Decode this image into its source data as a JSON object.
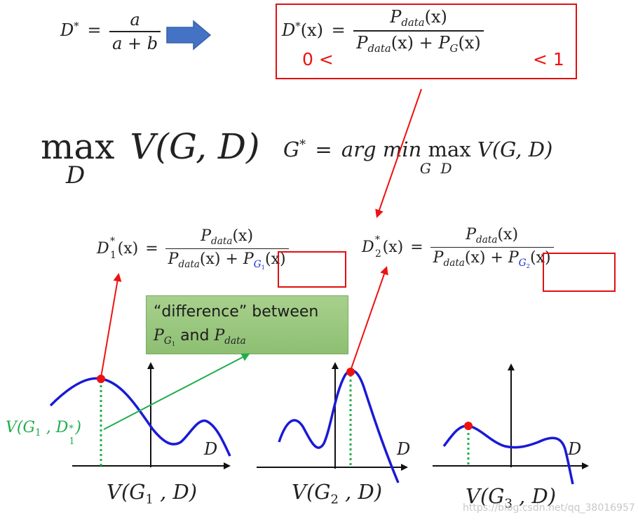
{
  "top_formula": {
    "lhs": "D",
    "star": "*",
    "equals": "=",
    "numerator": "a",
    "denominator": "a + b"
  },
  "boxed_formula": {
    "lhs": "D",
    "star": "*",
    "arg": "(x)",
    "equals": "=",
    "numerator": "P",
    "numerator_sub": "data",
    "numerator_arg": "(x)",
    "den_term1": "P",
    "den_term1_sub": "data",
    "den_term1_arg": "(x) + ",
    "den_term2": "P",
    "den_term2_sub": "G",
    "den_term2_arg": "(x)",
    "lower_bound": "0 <",
    "upper_bound": "< 1"
  },
  "max_formula": {
    "op": "max",
    "under": "D",
    "expr": "V(G, D)"
  },
  "gstar_formula": {
    "lhs": "G",
    "star": "*",
    "equals": "=",
    "argmin": "arg min",
    "min_under": "G",
    "max": "max",
    "max_under": "D",
    "expr": "V(G, D)"
  },
  "d1_formula": {
    "lhs": "D",
    "lhs_sup": "*",
    "lhs_sub": "1",
    "arg": "(x)",
    "equals": "=",
    "numerator": "P",
    "numerator_sub": "data",
    "numerator_arg": "(x)",
    "den_term1": "P",
    "den_term1_sub": "data",
    "den_term1_arg": "(x) + ",
    "boxed_P": "P",
    "boxed_sub": "G",
    "boxed_subsub": "1",
    "boxed_arg": "(x)"
  },
  "d2_formula": {
    "lhs": "D",
    "lhs_sup": "*",
    "lhs_sub": "2",
    "arg": "(x)",
    "equals": "=",
    "numerator": "P",
    "numerator_sub": "data",
    "numerator_arg": "(x)",
    "den_term1": "P",
    "den_term1_sub": "data",
    "den_term1_arg": "(x) + ",
    "boxed_P": "P",
    "boxed_sub": "G",
    "boxed_subsub": "2",
    "boxed_arg": "(x)"
  },
  "callout": {
    "line1": "“difference” between",
    "p1": "P",
    "p1_sub": "G",
    "p1_subsub": "1",
    "and": " and ",
    "p2": "P",
    "p2_sub": "data"
  },
  "green_label": {
    "text": "V(G",
    "sub1": "1",
    "mid": " , D",
    "sup": "*",
    "sub2": "1",
    "close": ")"
  },
  "plots": [
    {
      "axis_label": "D",
      "caption_pre": "V(G",
      "caption_sub": "1",
      "caption_post": " , D)"
    },
    {
      "axis_label": "D",
      "caption_pre": "V(G",
      "caption_sub": "2",
      "caption_post": " , D)"
    },
    {
      "axis_label": "D",
      "caption_pre": "V(G",
      "caption_sub": "3",
      "caption_post": " , D)"
    }
  ],
  "watermark": "https://blog.csdn.net/qq_38016957",
  "colors": {
    "curve": "#1a1ad6",
    "red": "#ee1111",
    "green": "#1fae4a",
    "callout": "#93c47d",
    "arrow_blue": "#4472c4"
  }
}
